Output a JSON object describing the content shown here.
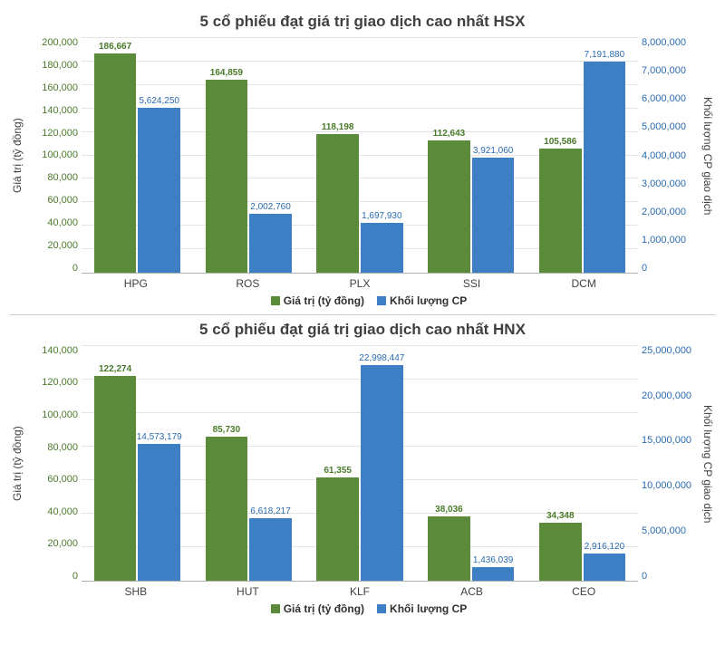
{
  "colors": {
    "series1": "#5b8a3a",
    "series2": "#3d7fc4",
    "grid": "#e4e4e4",
    "left_axis_text": "#4a7a2a",
    "right_axis_text": "#2a6bb0",
    "background": "#ffffff"
  },
  "charts": [
    {
      "title": "5 cổ phiếu đạt giá trị giao dịch cao nhất HSX",
      "y_left_label": "Giá trị (tỷ đồng)",
      "y_right_label": "Khối lượng CP giao dịch",
      "y_left": {
        "min": 0,
        "max": 200000,
        "step": 20000
      },
      "y_right": {
        "min": 0,
        "max": 8000000,
        "step": 1000000
      },
      "legend": [
        "Giá trị (tỷ đồng)",
        "Khối lượng CP"
      ],
      "categories": [
        "HPG",
        "ROS",
        "PLX",
        "SSI",
        "DCM"
      ],
      "series1_values": [
        186667,
        164859,
        118198,
        112643,
        105586
      ],
      "series2_values": [
        5624250,
        2002760,
        1697930,
        3921060,
        7191880
      ],
      "series1_labels": [
        "186,667",
        "164,859",
        "118,198",
        "112,643",
        "105,586"
      ],
      "series2_labels": [
        "5,624,250",
        "2,002,760",
        "1,697,930",
        "3,921,060",
        "7,191,880"
      ]
    },
    {
      "title": "5 cổ phiếu đạt giá trị giao dịch cao nhất HNX",
      "y_left_label": "Giá trị (tỷ đồng)",
      "y_right_label": "Khối lượng CP giao dịch",
      "y_left": {
        "min": 0,
        "max": 140000,
        "step": 20000
      },
      "y_right": {
        "min": 0,
        "max": 25000000,
        "step": 5000000
      },
      "legend": [
        "Giá trị (tỷ đồng)",
        "Khối lượng CP"
      ],
      "categories": [
        "SHB",
        "HUT",
        "KLF",
        "ACB",
        "CEO"
      ],
      "series1_values": [
        122274,
        85730,
        61355,
        38036,
        34348
      ],
      "series2_values": [
        14573179,
        6618217,
        22998447,
        1436039,
        2916120
      ],
      "series1_labels": [
        "122,274",
        "85,730",
        "61,355",
        "38,036",
        "34,348"
      ],
      "series2_labels": [
        "14,573,179",
        "6,618,217",
        "22,998,447",
        "1,436,039",
        "2,916,120"
      ]
    }
  ]
}
